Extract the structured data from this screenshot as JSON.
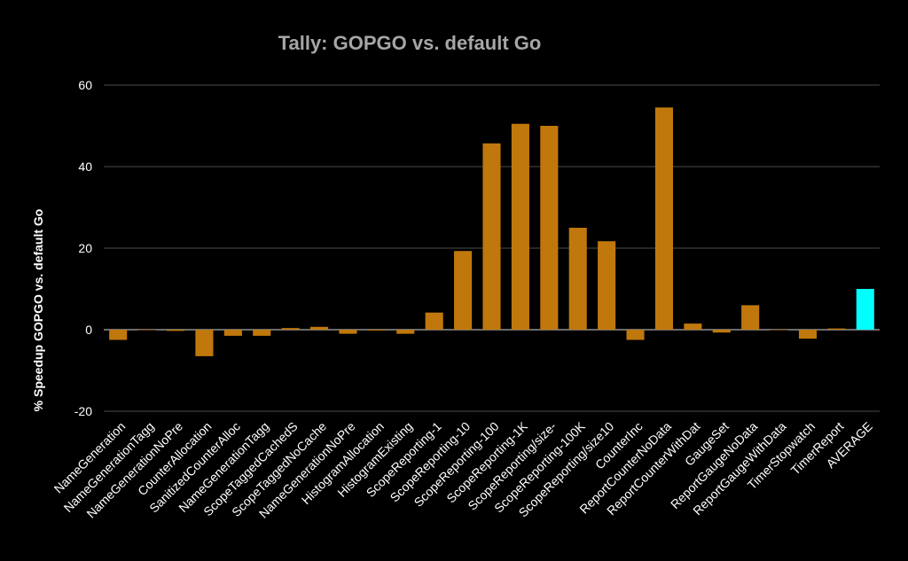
{
  "chart_data": {
    "type": "bar",
    "title": "Tally: GOPGO vs. default Go",
    "xlabel": "",
    "ylabel": "% Speedup GOPGO vs. default Go",
    "ylim": [
      -20,
      60
    ],
    "yticks": [
      -20,
      0,
      20,
      40,
      60
    ],
    "grid": true,
    "legend": "none",
    "colors": {
      "bar": "#c0780c",
      "highlight": "#00ffff",
      "background": "#000000",
      "title": "#a6a6a6"
    },
    "categories": [
      "NameGeneration",
      "NameGenerationTagg",
      "NameGenerationNoPre",
      "CounterAllocation",
      "SanitizedCounterAlloc",
      "NameGenerationTagg",
      "ScopeTaggedCachedS",
      "ScopeTaggedNoCache",
      "NameGenerationNoPre",
      "HistogramAllocation",
      "HistogramExisting",
      "ScopeReporting-1",
      "ScopeReporting-10",
      "ScopeReporting-100",
      "ScopeReporting-1K",
      "ScopeReporting/size-",
      "ScopeReporting-100K",
      "ScopeReporting/size10",
      "CounterInc",
      "ReportCounterNoData",
      "ReportCounterWithDat",
      "GaugeSet",
      "ReportGaugeNoData",
      "ReportGaugeWithData",
      "TimerStopwatch",
      "TimerReport",
      "AVERAGE"
    ],
    "values": [
      -2.5,
      0,
      -0.3,
      -6.5,
      -1.5,
      -1.5,
      0.4,
      0.7,
      -1,
      -0.2,
      -1,
      4.2,
      19.3,
      45.7,
      50.5,
      50,
      25,
      21.7,
      -2.5,
      54.5,
      1.5,
      -0.7,
      6,
      0,
      -2.2,
      0.3,
      10
    ]
  }
}
